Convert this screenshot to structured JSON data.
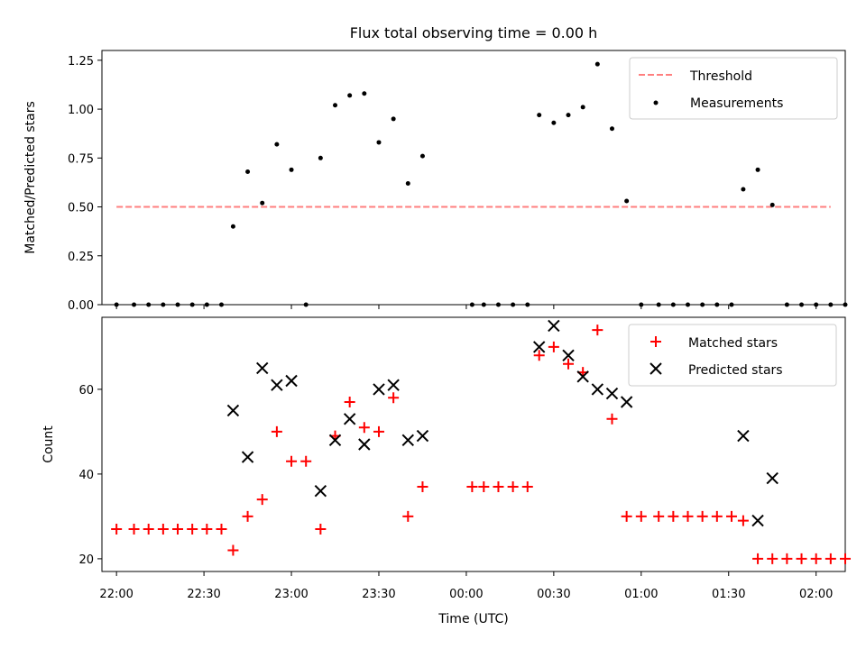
{
  "chart_data": [
    {
      "type": "scatter",
      "title": "Flux total observing time = 0.00 h",
      "xlabel": "",
      "ylabel": "Matched/Predicted stars",
      "xlim": [
        "21:55",
        "02:10"
      ],
      "ylim": [
        0,
        1.3
      ],
      "yticks": [
        "0.00",
        "0.25",
        "0.50",
        "0.75",
        "1.00",
        "1.25"
      ],
      "legend_position": "top-right",
      "threshold": {
        "name": "Threshold",
        "value": 0.5,
        "x_start": "22:00",
        "x_end": "02:05",
        "color": "#ff7f7f",
        "style": "dashed"
      },
      "series": [
        {
          "name": "Measurements",
          "color": "#000000",
          "marker": "dot",
          "points": [
            [
              "22:00",
              0
            ],
            [
              "22:06",
              0
            ],
            [
              "22:11",
              0
            ],
            [
              "22:16",
              0
            ],
            [
              "22:21",
              0
            ],
            [
              "22:26",
              0
            ],
            [
              "22:31",
              0
            ],
            [
              "22:36",
              0
            ],
            [
              "22:40",
              0.4
            ],
            [
              "22:45",
              0.68
            ],
            [
              "22:50",
              0.52
            ],
            [
              "22:55",
              0.82
            ],
            [
              "23:00",
              0.69
            ],
            [
              "23:05",
              0.0
            ],
            [
              "23:10",
              0.75
            ],
            [
              "23:15",
              1.02
            ],
            [
              "23:20",
              1.07
            ],
            [
              "23:25",
              1.08
            ],
            [
              "23:30",
              0.83
            ],
            [
              "23:35",
              0.95
            ],
            [
              "23:40",
              0.62
            ],
            [
              "23:45",
              0.76
            ],
            [
              "00:02",
              0
            ],
            [
              "00:06",
              0
            ],
            [
              "00:11",
              0
            ],
            [
              "00:16",
              0
            ],
            [
              "00:21",
              0
            ],
            [
              "00:25",
              0.97
            ],
            [
              "00:30",
              0.93
            ],
            [
              "00:35",
              0.97
            ],
            [
              "00:40",
              1.01
            ],
            [
              "00:45",
              1.23
            ],
            [
              "00:50",
              0.9
            ],
            [
              "00:55",
              0.53
            ],
            [
              "01:00",
              0
            ],
            [
              "01:06",
              0
            ],
            [
              "01:11",
              0
            ],
            [
              "01:16",
              0
            ],
            [
              "01:21",
              0
            ],
            [
              "01:26",
              0
            ],
            [
              "01:31",
              0
            ],
            [
              "01:35",
              0.59
            ],
            [
              "01:40",
              0.69
            ],
            [
              "01:45",
              0.51
            ],
            [
              "01:50",
              0
            ],
            [
              "01:55",
              0
            ],
            [
              "02:00",
              0
            ],
            [
              "02:05",
              0
            ],
            [
              "02:10",
              0
            ]
          ]
        }
      ]
    },
    {
      "type": "scatter",
      "title": "",
      "xlabel": "Time (UTC)",
      "ylabel": "Count",
      "xlim": [
        "21:55",
        "02:10"
      ],
      "ylim": [
        17,
        77
      ],
      "yticks": [
        "20",
        "40",
        "60"
      ],
      "xticks": [
        "22:00",
        "22:30",
        "23:00",
        "23:30",
        "00:00",
        "00:30",
        "01:00",
        "01:30",
        "02:00"
      ],
      "legend_position": "top-right",
      "series": [
        {
          "name": "Matched stars",
          "color": "#ff0000",
          "marker": "plus",
          "points": [
            [
              "22:00",
              27
            ],
            [
              "22:06",
              27
            ],
            [
              "22:11",
              27
            ],
            [
              "22:16",
              27
            ],
            [
              "22:21",
              27
            ],
            [
              "22:26",
              27
            ],
            [
              "22:31",
              27
            ],
            [
              "22:36",
              27
            ],
            [
              "22:40",
              22
            ],
            [
              "22:45",
              30
            ],
            [
              "22:50",
              34
            ],
            [
              "22:55",
              50
            ],
            [
              "23:00",
              43
            ],
            [
              "23:05",
              43
            ],
            [
              "23:10",
              27
            ],
            [
              "23:15",
              49
            ],
            [
              "23:20",
              57
            ],
            [
              "23:25",
              51
            ],
            [
              "23:30",
              50
            ],
            [
              "23:35",
              58
            ],
            [
              "23:40",
              30
            ],
            [
              "23:45",
              37
            ],
            [
              "00:02",
              37
            ],
            [
              "00:06",
              37
            ],
            [
              "00:11",
              37
            ],
            [
              "00:16",
              37
            ],
            [
              "00:21",
              37
            ],
            [
              "00:25",
              68
            ],
            [
              "00:30",
              70
            ],
            [
              "00:35",
              66
            ],
            [
              "00:40",
              64
            ],
            [
              "00:45",
              74
            ],
            [
              "00:50",
              53
            ],
            [
              "00:55",
              30
            ],
            [
              "01:00",
              30
            ],
            [
              "01:06",
              30
            ],
            [
              "01:11",
              30
            ],
            [
              "01:16",
              30
            ],
            [
              "01:21",
              30
            ],
            [
              "01:26",
              30
            ],
            [
              "01:31",
              30
            ],
            [
              "01:35",
              29
            ],
            [
              "01:40",
              20
            ],
            [
              "01:45",
              20
            ],
            [
              "01:50",
              20
            ],
            [
              "01:55",
              20
            ],
            [
              "02:00",
              20
            ],
            [
              "02:05",
              20
            ],
            [
              "02:10",
              20
            ]
          ]
        },
        {
          "name": "Predicted stars",
          "color": "#000000",
          "marker": "x",
          "points": [
            [
              "22:40",
              55
            ],
            [
              "22:45",
              44
            ],
            [
              "22:50",
              65
            ],
            [
              "22:55",
              61
            ],
            [
              "23:00",
              62
            ],
            [
              "23:10",
              36
            ],
            [
              "23:15",
              48
            ],
            [
              "23:20",
              53
            ],
            [
              "23:25",
              47
            ],
            [
              "23:30",
              60
            ],
            [
              "23:35",
              61
            ],
            [
              "23:40",
              48
            ],
            [
              "23:45",
              49
            ],
            [
              "00:25",
              70
            ],
            [
              "00:30",
              75
            ],
            [
              "00:35",
              68
            ],
            [
              "00:40",
              63
            ],
            [
              "00:45",
              60
            ],
            [
              "00:50",
              59
            ],
            [
              "00:55",
              57
            ],
            [
              "01:35",
              49
            ],
            [
              "01:40",
              29
            ],
            [
              "01:45",
              39
            ]
          ]
        }
      ]
    }
  ]
}
